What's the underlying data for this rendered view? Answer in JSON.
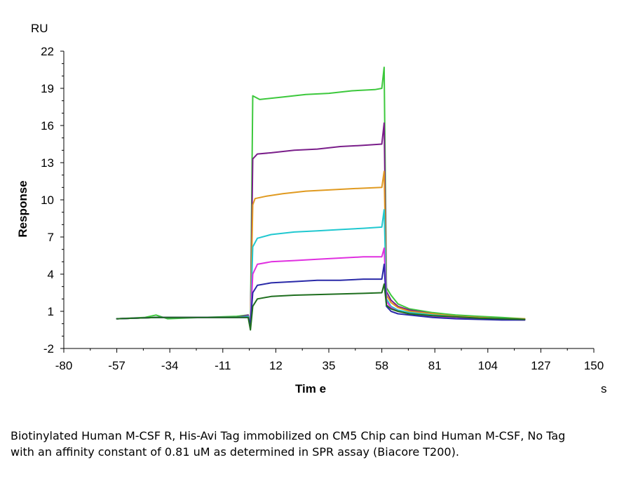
{
  "chart_data": {
    "type": "line",
    "title": "",
    "xlabel": "Tim e",
    "ylabel": "Response",
    "x_unit": "s",
    "y_unit": "RU",
    "xlim": [
      -80,
      150
    ],
    "ylim": [
      -2,
      22
    ],
    "x_ticks": [
      -80,
      -57,
      -34,
      -11,
      12,
      35,
      58,
      81,
      104,
      127,
      150
    ],
    "y_ticks": [
      -2,
      1,
      4,
      7,
      10,
      13,
      16,
      19,
      22
    ],
    "x_tick_labels": [
      "-80",
      "-57",
      "-34",
      "-11",
      "12",
      "35",
      "58",
      "81",
      "104",
      "127",
      "150"
    ],
    "y_tick_labels": [
      "-2",
      "1",
      "4",
      "7",
      "10",
      "13",
      "16",
      "19",
      "22"
    ],
    "grid": false,
    "legend": "none",
    "series": [
      {
        "color": "#3cc83c",
        "points": [
          [
            -57,
            0.4
          ],
          [
            -45,
            0.5
          ],
          [
            -40,
            0.7
          ],
          [
            -35,
            0.4
          ],
          [
            -20,
            0.5
          ],
          [
            -5,
            0.6
          ],
          [
            0,
            0.7
          ],
          [
            1,
            0
          ],
          [
            2,
            18.4
          ],
          [
            5,
            18.1
          ],
          [
            15,
            18.3
          ],
          [
            25,
            18.5
          ],
          [
            35,
            18.6
          ],
          [
            45,
            18.8
          ],
          [
            55,
            18.9
          ],
          [
            58,
            19.0
          ],
          [
            59,
            20.7
          ],
          [
            60,
            2.9
          ],
          [
            62,
            2.3
          ],
          [
            65,
            1.6
          ],
          [
            70,
            1.2
          ],
          [
            80,
            0.9
          ],
          [
            90,
            0.7
          ],
          [
            100,
            0.6
          ],
          [
            110,
            0.5
          ],
          [
            120,
            0.4
          ]
        ]
      },
      {
        "color": "#7a1e8a",
        "points": [
          [
            -57,
            0.4
          ],
          [
            -40,
            0.5
          ],
          [
            -20,
            0.5
          ],
          [
            -5,
            0.5
          ],
          [
            0,
            0.7
          ],
          [
            1,
            0
          ],
          [
            2,
            13.3
          ],
          [
            4,
            13.7
          ],
          [
            10,
            13.8
          ],
          [
            20,
            14.0
          ],
          [
            30,
            14.1
          ],
          [
            40,
            14.3
          ],
          [
            50,
            14.4
          ],
          [
            58,
            14.5
          ],
          [
            59,
            16.2
          ],
          [
            60,
            2.6
          ],
          [
            62,
            1.9
          ],
          [
            65,
            1.4
          ],
          [
            70,
            1.1
          ],
          [
            80,
            0.8
          ],
          [
            90,
            0.6
          ],
          [
            100,
            0.5
          ],
          [
            110,
            0.4
          ],
          [
            120,
            0.35
          ]
        ]
      },
      {
        "color": "#e09a20",
        "points": [
          [
            -57,
            0.4
          ],
          [
            -40,
            0.5
          ],
          [
            -20,
            0.5
          ],
          [
            -5,
            0.5
          ],
          [
            0,
            0.6
          ],
          [
            1,
            0
          ],
          [
            2,
            9.6
          ],
          [
            3,
            10.1
          ],
          [
            8,
            10.3
          ],
          [
            15,
            10.5
          ],
          [
            25,
            10.7
          ],
          [
            35,
            10.8
          ],
          [
            45,
            10.9
          ],
          [
            58,
            11.0
          ],
          [
            59,
            12.3
          ],
          [
            60,
            2.3
          ],
          [
            62,
            1.7
          ],
          [
            65,
            1.3
          ],
          [
            70,
            1.0
          ],
          [
            80,
            0.8
          ],
          [
            90,
            0.6
          ],
          [
            100,
            0.5
          ],
          [
            110,
            0.4
          ],
          [
            120,
            0.4
          ]
        ]
      },
      {
        "color": "#20c8d0",
        "points": [
          [
            -57,
            0.4
          ],
          [
            -40,
            0.5
          ],
          [
            -20,
            0.5
          ],
          [
            -5,
            0.5
          ],
          [
            0,
            0.6
          ],
          [
            1,
            0
          ],
          [
            2,
            6.2
          ],
          [
            4,
            6.9
          ],
          [
            10,
            7.2
          ],
          [
            20,
            7.4
          ],
          [
            30,
            7.5
          ],
          [
            40,
            7.6
          ],
          [
            50,
            7.7
          ],
          [
            58,
            7.8
          ],
          [
            59,
            9.2
          ],
          [
            60,
            2.0
          ],
          [
            62,
            1.4
          ],
          [
            65,
            1.1
          ],
          [
            70,
            0.9
          ],
          [
            80,
            0.7
          ],
          [
            90,
            0.55
          ],
          [
            100,
            0.45
          ],
          [
            110,
            0.4
          ],
          [
            120,
            0.35
          ]
        ]
      },
      {
        "color": "#e030e0",
        "points": [
          [
            -57,
            0.4
          ],
          [
            -40,
            0.5
          ],
          [
            -20,
            0.5
          ],
          [
            -5,
            0.5
          ],
          [
            0,
            0.5
          ],
          [
            1,
            0
          ],
          [
            2,
            4.0
          ],
          [
            4,
            4.8
          ],
          [
            10,
            5.0
          ],
          [
            20,
            5.1
          ],
          [
            30,
            5.2
          ],
          [
            40,
            5.3
          ],
          [
            50,
            5.4
          ],
          [
            58,
            5.4
          ],
          [
            59,
            6.1
          ],
          [
            60,
            1.8
          ],
          [
            62,
            1.3
          ],
          [
            65,
            1.0
          ],
          [
            70,
            0.8
          ],
          [
            80,
            0.6
          ],
          [
            90,
            0.5
          ],
          [
            100,
            0.4
          ],
          [
            110,
            0.35
          ],
          [
            120,
            0.3
          ]
        ]
      },
      {
        "color": "#2a2aa8",
        "points": [
          [
            -57,
            0.4
          ],
          [
            -40,
            0.5
          ],
          [
            -20,
            0.5
          ],
          [
            -5,
            0.5
          ],
          [
            0,
            0.5
          ],
          [
            1,
            0
          ],
          [
            2,
            2.5
          ],
          [
            4,
            3.1
          ],
          [
            10,
            3.3
          ],
          [
            20,
            3.4
          ],
          [
            30,
            3.5
          ],
          [
            40,
            3.5
          ],
          [
            50,
            3.6
          ],
          [
            58,
            3.6
          ],
          [
            59,
            4.8
          ],
          [
            60,
            1.4
          ],
          [
            62,
            1.0
          ],
          [
            65,
            0.8
          ],
          [
            70,
            0.7
          ],
          [
            80,
            0.5
          ],
          [
            90,
            0.4
          ],
          [
            100,
            0.35
          ],
          [
            110,
            0.3
          ],
          [
            120,
            0.3
          ]
        ]
      },
      {
        "color": "#1e6e1e",
        "points": [
          [
            -57,
            0.4
          ],
          [
            -40,
            0.5
          ],
          [
            -20,
            0.5
          ],
          [
            -5,
            0.5
          ],
          [
            0,
            0.5
          ],
          [
            1,
            -0.5
          ],
          [
            2,
            1.4
          ],
          [
            4,
            2.0
          ],
          [
            10,
            2.2
          ],
          [
            20,
            2.3
          ],
          [
            30,
            2.35
          ],
          [
            40,
            2.4
          ],
          [
            50,
            2.45
          ],
          [
            58,
            2.5
          ],
          [
            59,
            3.2
          ],
          [
            60,
            1.5
          ],
          [
            62,
            1.2
          ],
          [
            65,
            1.0
          ],
          [
            70,
            0.8
          ],
          [
            80,
            0.65
          ],
          [
            90,
            0.55
          ],
          [
            100,
            0.45
          ],
          [
            110,
            0.4
          ],
          [
            120,
            0.35
          ]
        ]
      }
    ]
  },
  "caption": "Biotinylated Human M-CSF R, His-Avi Tag immobilized on CM5 Chip can bind Human M-CSF, No Tag with an affinity constant of 0.81 uM as determined in SPR assay (Biacore T200)."
}
